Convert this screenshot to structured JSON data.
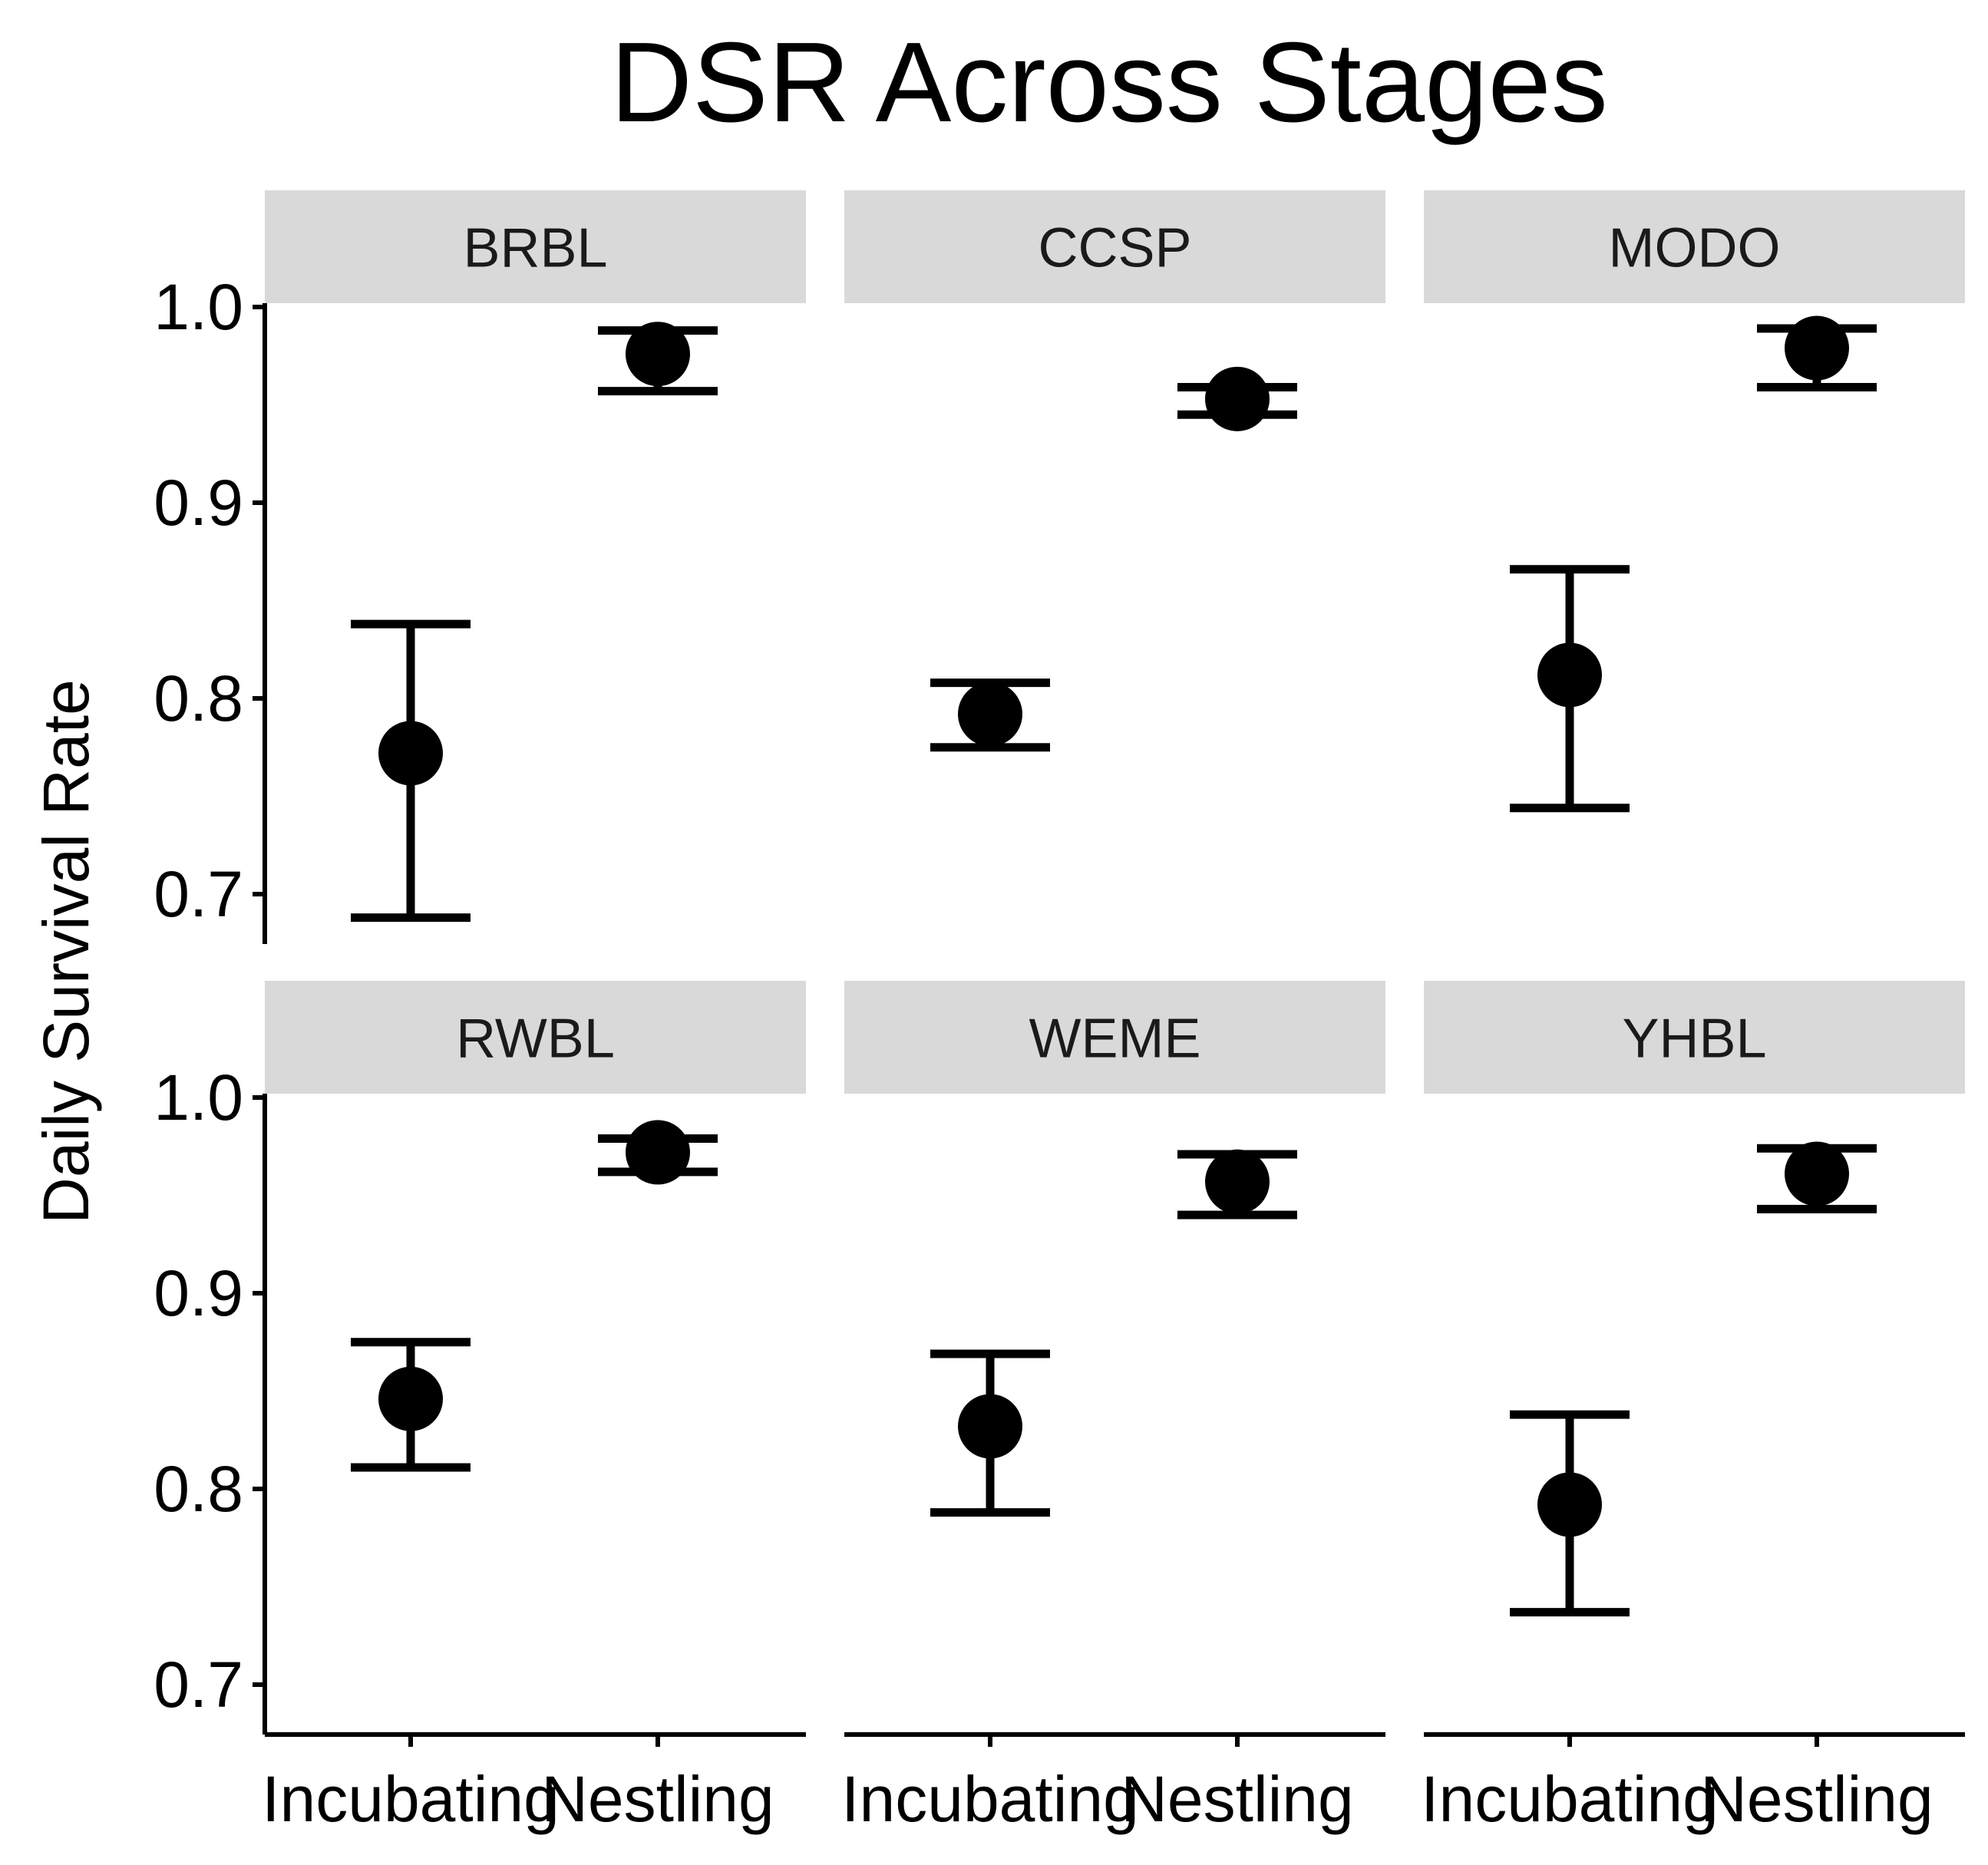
{
  "chart_data": {
    "type": "errorbar",
    "title": "DSR Across Stages",
    "xlabel": "",
    "ylabel": "Daily Survival Rate",
    "categories": [
      "Incubating",
      "Nestling"
    ],
    "ylim": [
      0.675,
      1.0
    ],
    "yticks": [
      "0.7",
      "0.8",
      "0.9",
      "1.0"
    ],
    "facets": [
      {
        "name": "BRBL",
        "points": [
          {
            "stage": "Incubating",
            "value": 0.772,
            "lower": 0.688,
            "upper": 0.838
          },
          {
            "stage": "Nestling",
            "value": 0.976,
            "lower": 0.957,
            "upper": 0.988
          }
        ]
      },
      {
        "name": "CCSP",
        "points": [
          {
            "stage": "Incubating",
            "value": 0.792,
            "lower": 0.775,
            "upper": 0.808
          },
          {
            "stage": "Nestling",
            "value": 0.953,
            "lower": 0.945,
            "upper": 0.959
          }
        ]
      },
      {
        "name": "MODO",
        "points": [
          {
            "stage": "Incubating",
            "value": 0.812,
            "lower": 0.744,
            "upper": 0.866
          },
          {
            "stage": "Nestling",
            "value": 0.979,
            "lower": 0.959,
            "upper": 0.989
          }
        ]
      },
      {
        "name": "RWBL",
        "points": [
          {
            "stage": "Incubating",
            "value": 0.846,
            "lower": 0.811,
            "upper": 0.875
          },
          {
            "stage": "Nestling",
            "value": 0.972,
            "lower": 0.962,
            "upper": 0.979
          }
        ]
      },
      {
        "name": "WEME",
        "points": [
          {
            "stage": "Incubating",
            "value": 0.832,
            "lower": 0.788,
            "upper": 0.869
          },
          {
            "stage": "Nestling",
            "value": 0.957,
            "lower": 0.94,
            "upper": 0.971
          }
        ]
      },
      {
        "name": "YHBL",
        "points": [
          {
            "stage": "Incubating",
            "value": 0.792,
            "lower": 0.737,
            "upper": 0.838
          },
          {
            "stage": "Nestling",
            "value": 0.961,
            "lower": 0.943,
            "upper": 0.974
          }
        ]
      }
    ]
  }
}
